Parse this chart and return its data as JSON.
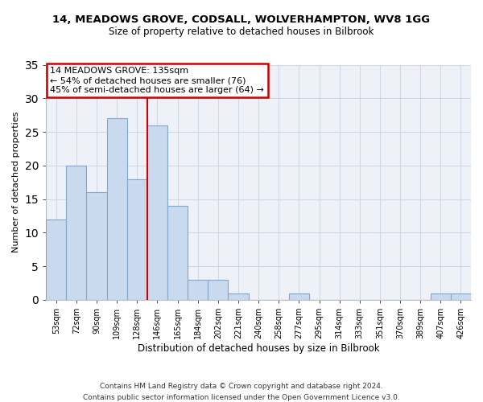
{
  "title": "14, MEADOWS GROVE, CODSALL, WOLVERHAMPTON, WV8 1GG",
  "subtitle": "Size of property relative to detached houses in Bilbrook",
  "xlabel": "Distribution of detached houses by size in Bilbrook",
  "ylabel": "Number of detached properties",
  "footnote1": "Contains HM Land Registry data © Crown copyright and database right 2024.",
  "footnote2": "Contains public sector information licensed under the Open Government Licence v3.0.",
  "bin_labels": [
    "53sqm",
    "72sqm",
    "90sqm",
    "109sqm",
    "128sqm",
    "146sqm",
    "165sqm",
    "184sqm",
    "202sqm",
    "221sqm",
    "240sqm",
    "258sqm",
    "277sqm",
    "295sqm",
    "314sqm",
    "333sqm",
    "351sqm",
    "370sqm",
    "389sqm",
    "407sqm",
    "426sqm"
  ],
  "bar_values": [
    12,
    20,
    16,
    27,
    18,
    26,
    14,
    3,
    3,
    1,
    0,
    0,
    1,
    0,
    0,
    0,
    0,
    0,
    0,
    1,
    1
  ],
  "bar_color": "#c9d9ee",
  "bar_edge_color": "#7fa8d0",
  "vline_x": 4.5,
  "vline_color": "#cc0000",
  "annotation_title": "14 MEADOWS GROVE: 135sqm",
  "annotation_line1": "← 54% of detached houses are smaller (76)",
  "annotation_line2": "45% of semi-detached houses are larger (64) →",
  "annotation_box_edge": "#cc0000",
  "ylim": [
    0,
    35
  ],
  "yticks": [
    0,
    5,
    10,
    15,
    20,
    25,
    30,
    35
  ],
  "background_color": "#ffffff",
  "grid_color": "#d0d8e8"
}
